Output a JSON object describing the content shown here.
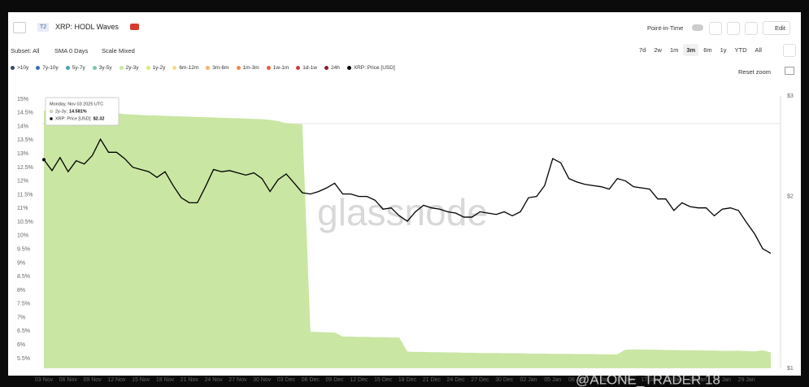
{
  "header": {
    "badge": "T2",
    "title": "XRP: HODL Waves",
    "point_in_time": "Point-in-Time",
    "edit": "Edit"
  },
  "controls": {
    "subset": "Subset: All",
    "sma": "SMA 0 Days",
    "scale": "Scale Mixed",
    "ranges": [
      "7d",
      "2w",
      "1m",
      "3m",
      "6m",
      "1y",
      "YTD",
      "All"
    ],
    "active_range_index": 3
  },
  "reset_zoom": "Reset zoom",
  "watermark": "glassnode",
  "overlay": "@ALONE_TRADER 18",
  "tooltip": {
    "title": "Monday, Nov 03 2025 UTC",
    "rows": [
      {
        "label": "2y-3y:",
        "value": "14.581%",
        "color": "#c9e6a3"
      },
      {
        "label": "XRP: Price [USD]:",
        "value": "$2.32",
        "color": "#000000"
      }
    ]
  },
  "chart_data": {
    "type": "area",
    "categories": [
      "03 Nov",
      null,
      null,
      "06 Nov",
      null,
      null,
      "09 Nov",
      null,
      null,
      "12 Nov",
      null,
      null,
      "15 Nov",
      null,
      null,
      "18 Nov",
      null,
      null,
      "21 Nov",
      null,
      null,
      "24 Nov",
      null,
      null,
      "27 Nov",
      null,
      null,
      "30 Nov",
      null,
      null,
      "03 Dec",
      null,
      null,
      "06 Dec",
      null,
      null,
      "09 Dec",
      null,
      null,
      "12 Dec",
      null,
      null,
      "15 Dec",
      null,
      null,
      "18 Dec",
      null,
      null,
      "21 Dec",
      null,
      null,
      "24 Dec",
      null,
      null,
      "27 Dec",
      null,
      null,
      "30 Dec",
      null,
      null,
      "02 Jan",
      null,
      null,
      "05 Jan",
      null,
      null,
      "08 Jan",
      null,
      null,
      "11 Jan",
      null,
      null,
      "14 Jan",
      null,
      null,
      "17 Jan",
      null,
      null,
      "20 Jan",
      null,
      null,
      "23 Jan",
      null,
      null,
      "26 Jan",
      null,
      null,
      "29 Jan",
      null,
      null,
      null
    ],
    "series": [
      {
        "name": ">10y",
        "color": "#3a4a6b",
        "visible": false
      },
      {
        "name": "7y-10y",
        "color": "#3c6fb0",
        "visible": false
      },
      {
        "name": "5y-7y",
        "color": "#4aa3b5",
        "visible": false
      },
      {
        "name": "3y-5y",
        "color": "#7cc7b2",
        "visible": false
      },
      {
        "name": "2y-3y",
        "color": "#c9e6a3",
        "visible": true,
        "style": "area",
        "values": [
          14.581,
          14.57,
          14.57,
          14.56,
          14.55,
          14.55,
          14.54,
          14.53,
          14.52,
          14.5,
          14.45,
          14.44,
          14.42,
          14.41,
          14.4,
          14.39,
          14.38,
          14.37,
          14.36,
          14.35,
          14.34,
          14.33,
          14.32,
          14.31,
          14.3,
          14.29,
          14.28,
          14.27,
          14.24,
          14.2,
          14.12,
          14.1,
          14.08,
          6.48,
          6.47,
          6.46,
          6.45,
          6.3,
          6.3,
          6.29,
          6.29,
          6.28,
          6.28,
          6.27,
          6.27,
          5.75,
          5.74,
          5.74,
          5.73,
          5.73,
          5.72,
          5.72,
          5.71,
          5.71,
          5.7,
          5.7,
          5.7,
          5.69,
          5.69,
          5.69,
          5.68,
          5.68,
          5.68,
          5.67,
          5.67,
          5.67,
          5.66,
          5.66,
          5.66,
          5.65,
          5.65,
          5.65,
          5.82,
          5.83,
          5.83,
          5.82,
          5.82,
          5.81,
          5.81,
          5.8,
          5.8,
          5.8,
          5.79,
          5.79,
          5.78,
          5.78,
          5.78,
          5.77,
          5.76,
          5.8,
          5.72
        ]
      },
      {
        "name": "1y-2y",
        "color": "#dfe580",
        "visible": false
      },
      {
        "name": "6m-12m",
        "color": "#f5d98b",
        "visible": false
      },
      {
        "name": "3m-6m",
        "color": "#f6b26b",
        "visible": false
      },
      {
        "name": "1m-3m",
        "color": "#ef8a4c",
        "visible": false
      },
      {
        "name": "1w-1m",
        "color": "#e0603f",
        "visible": false
      },
      {
        "name": "1d-1w",
        "color": "#c43d3d",
        "visible": false
      },
      {
        "name": "24h",
        "color": "#8e1f2f",
        "visible": false
      },
      {
        "name": "XRP: Price [USD]",
        "color": "#000000",
        "visible": true,
        "style": "line",
        "axis": "y2",
        "values": [
          2.32,
          2.22,
          2.34,
          2.21,
          2.31,
          2.28,
          2.36,
          2.52,
          2.39,
          2.39,
          2.33,
          2.25,
          2.23,
          2.21,
          2.16,
          2.21,
          2.09,
          1.99,
          1.95,
          1.95,
          2.08,
          2.23,
          2.21,
          2.22,
          2.2,
          2.18,
          2.2,
          2.15,
          2.04,
          2.14,
          2.19,
          2.11,
          2.03,
          2.02,
          2.04,
          2.07,
          2.11,
          2.02,
          2.02,
          2.0,
          2.0,
          1.97,
          1.9,
          1.91,
          1.85,
          1.81,
          1.88,
          1.93,
          1.91,
          1.9,
          1.88,
          1.87,
          1.84,
          1.84,
          1.88,
          1.87,
          1.86,
          1.88,
          1.85,
          1.88,
          1.99,
          2.0,
          2.09,
          2.33,
          2.29,
          2.15,
          2.12,
          2.1,
          2.09,
          2.08,
          2.06,
          2.15,
          2.13,
          2.08,
          2.07,
          2.06,
          1.98,
          1.98,
          1.89,
          1.95,
          1.92,
          1.91,
          1.91,
          1.85,
          1.9,
          1.91,
          1.89,
          1.8,
          1.72,
          1.62,
          1.59
        ]
      }
    ],
    "ylim": [
      5.14,
      15.12
    ],
    "yticks": [
      {
        "value": 15,
        "label": "15%"
      },
      {
        "value": 14.5,
        "label": "14.5%"
      },
      {
        "value": 14,
        "label": "14%"
      },
      {
        "value": 13.5,
        "label": "13.5%"
      },
      {
        "value": 13,
        "label": "13%"
      },
      {
        "value": 12.5,
        "label": "12.5%"
      },
      {
        "value": 12,
        "label": "12%"
      },
      {
        "value": 11.5,
        "label": "11.5%"
      },
      {
        "value": 11,
        "label": "11%"
      },
      {
        "value": 10.5,
        "label": "10.5%"
      },
      {
        "value": 10,
        "label": "10%"
      },
      {
        "value": 9.5,
        "label": "9.5%"
      },
      {
        "value": 9,
        "label": "9%"
      },
      {
        "value": 8.5,
        "label": "8.5%"
      },
      {
        "value": 8,
        "label": "8%"
      },
      {
        "value": 7.5,
        "label": "7.5%"
      },
      {
        "value": 7,
        "label": "7%"
      },
      {
        "value": 6.5,
        "label": "6.5%"
      },
      {
        "value": 6,
        "label": "6%"
      },
      {
        "value": 5.5,
        "label": "5.5%"
      }
    ],
    "y2lim": [
      1,
      3
    ],
    "y2ticks": [
      {
        "value": 3,
        "label": "$3"
      },
      {
        "value": 2,
        "label": "$2"
      },
      {
        "value": 1,
        "label": "$1"
      }
    ],
    "y2scale": "log",
    "grid": false
  }
}
